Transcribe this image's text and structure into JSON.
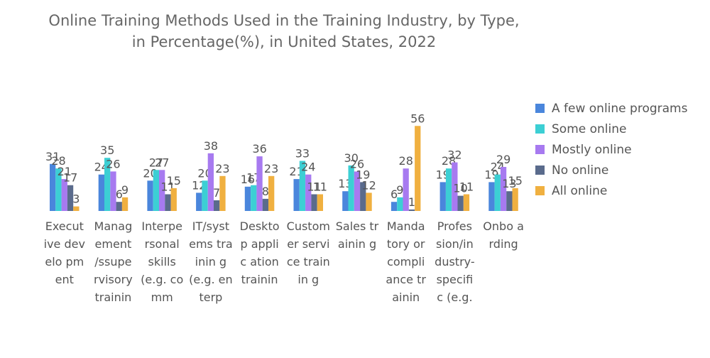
{
  "chart_data": {
    "type": "bar",
    "title_lines": [
      "Online Training Methods Used in the Training Industry, by Type,",
      "in Percentage(%), in United States, 2022"
    ],
    "categories": [
      "Executive development",
      "Management/supervisory training",
      "Interpersonal skills (e.g. communication)",
      "IT/systems training (e.g. enterprise)",
      "Desktop application training",
      "Customer service training",
      "Sales training",
      "Mandatory or compliance training",
      "Profession/industry-specific (e.g.",
      "Onboarding"
    ],
    "category_labels_display": [
      "Execut ive develo pment",
      "Manag ement /ssupe rvisory trainin",
      "Interpe rsonal skills (e.g. comm",
      "IT/syst ems trainin g (e.g. enterp",
      "Deskto p applic ation trainin",
      "Custom er service trainin g",
      "Sales trainin g",
      "Manda tory or compli ance trainin",
      "Profes sion/in dustry- specifi c (e.g.",
      "Onbo arding"
    ],
    "series": [
      {
        "name": "A few online programs",
        "color": "#4a86dc",
        "values": [
          31,
          24,
          20,
          12,
          16,
          21,
          13,
          6,
          19,
          19
        ]
      },
      {
        "name": "Some online",
        "color": "#3ccfd4",
        "values": [
          28,
          35,
          27,
          20,
          17,
          33,
          30,
          9,
          28,
          24
        ]
      },
      {
        "name": "Mostly online",
        "color": "#a77af0",
        "values": [
          21,
          26,
          27,
          38,
          36,
          24,
          26,
          28,
          32,
          29
        ]
      },
      {
        "name": "No online",
        "color": "#5a6b8c",
        "values": [
          17,
          6,
          11,
          7,
          8,
          11,
          19,
          1,
          10,
          13
        ]
      },
      {
        "name": "All online",
        "color": "#f0b040",
        "values": [
          3,
          9,
          15,
          23,
          23,
          11,
          12,
          56,
          11,
          15
        ]
      }
    ],
    "ylim": [
      0,
      56
    ]
  }
}
